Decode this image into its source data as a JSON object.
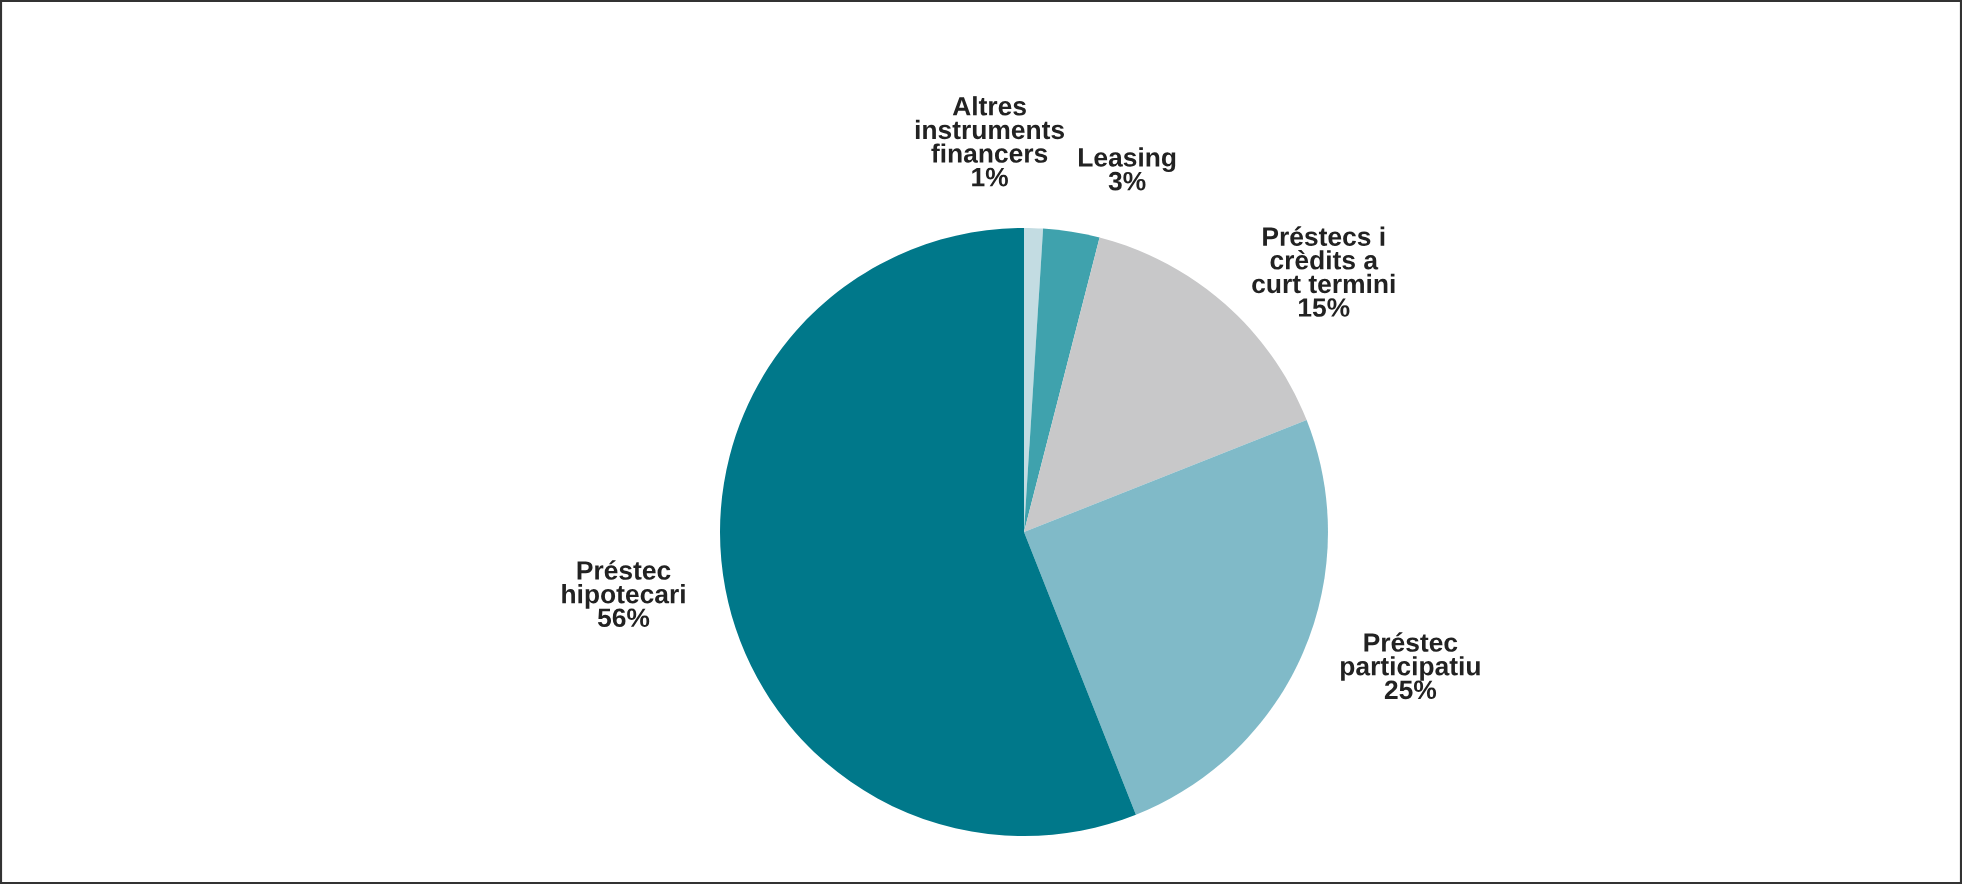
{
  "chart_data": {
    "type": "pie",
    "categories": [
      "Altres\ninstruments\nfinancers",
      "Leasing",
      "Préstecs i\ncrèdits a\ncurt termini",
      "Préstec\nparticipatiu",
      "Préstec\nhipotecari"
    ],
    "values": [
      1,
      3,
      15,
      25,
      56
    ],
    "value_labels": [
      "1%",
      "3%",
      "15%",
      "25%",
      "56%"
    ],
    "colors": [
      "#c3dce2",
      "#3fa2ad",
      "#c8c8c9",
      "#80bac8",
      "#00788a"
    ]
  }
}
